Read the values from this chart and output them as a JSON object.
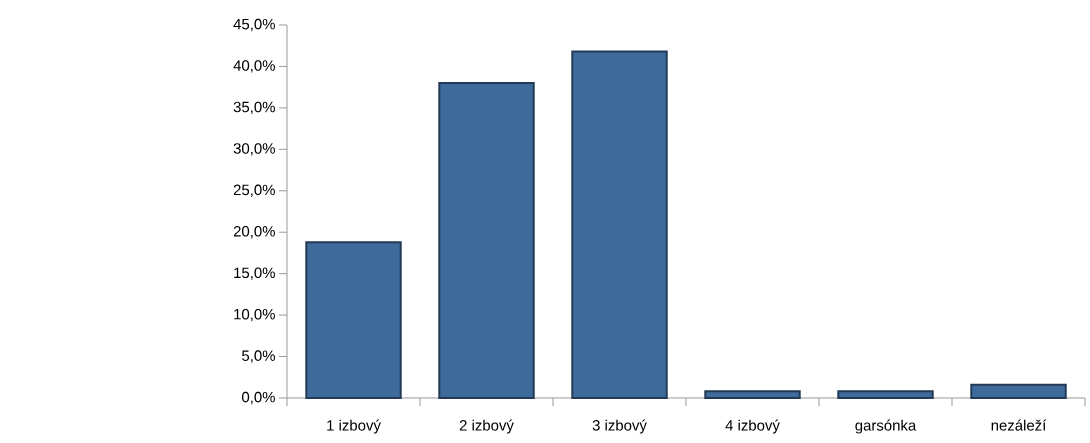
{
  "chart_data": {
    "type": "bar",
    "categories": [
      "1 izbový",
      "2 izbový",
      "3 izbový",
      "4 izbový",
      "garsónka",
      "nezáleží"
    ],
    "values": [
      18.8,
      38.0,
      41.8,
      0.8,
      0.8,
      1.6
    ],
    "color": "#3f6a9c",
    "ylim": [
      0,
      45
    ],
    "yticks": [
      {
        "value": 0,
        "label": "0,0%"
      },
      {
        "value": 5,
        "label": "5,0%"
      },
      {
        "value": 10,
        "label": "10,0%"
      },
      {
        "value": 15,
        "label": "15,0%"
      },
      {
        "value": 20,
        "label": "20,0%"
      },
      {
        "value": 25,
        "label": "25,0%"
      },
      {
        "value": 30,
        "label": "30,0%"
      },
      {
        "value": 35,
        "label": "35,0%"
      },
      {
        "value": 40,
        "label": "40,0%"
      },
      {
        "value": 45,
        "label": "45,0%"
      }
    ],
    "grid": false
  }
}
